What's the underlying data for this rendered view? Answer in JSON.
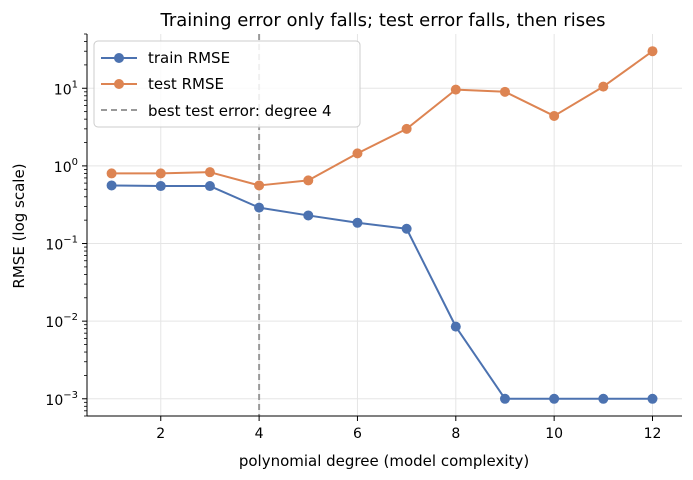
{
  "chart_data": {
    "type": "line",
    "title": "Training error only falls; test error falls, then rises",
    "xlabel": "polynomial degree (model complexity)",
    "ylabel": "RMSE (log scale)",
    "x_scale": "linear",
    "y_scale": "log",
    "xlim": [
      0.5,
      12.6
    ],
    "ylim": [
      0.0006,
      50
    ],
    "x_ticks": [
      2,
      4,
      6,
      8,
      10,
      12
    ],
    "x_tick_labels": [
      "2",
      "4",
      "6",
      "8",
      "10",
      "12"
    ],
    "y_ticks": [
      0.001,
      0.01,
      0.1,
      1,
      10
    ],
    "y_tick_labels": [
      {
        "base": "10",
        "exp": "−3"
      },
      {
        "base": "10",
        "exp": "−2"
      },
      {
        "base": "10",
        "exp": "−1"
      },
      {
        "base": "10",
        "exp": "0"
      },
      {
        "base": "10",
        "exp": "1"
      }
    ],
    "grid": true,
    "legend_position": "top-left",
    "x": [
      1,
      2,
      3,
      4,
      5,
      6,
      7,
      8,
      9,
      10,
      11,
      12
    ],
    "series": [
      {
        "name": "train RMSE",
        "color": "#4c72b0",
        "marker": "circle",
        "values": [
          0.56,
          0.55,
          0.55,
          0.29,
          0.23,
          0.185,
          0.155,
          0.0085,
          0.001,
          0.001,
          0.001,
          0.001
        ]
      },
      {
        "name": "test RMSE",
        "color": "#dd8452",
        "marker": "circle",
        "values": [
          0.8,
          0.8,
          0.83,
          0.56,
          0.65,
          1.45,
          3.0,
          9.6,
          9.0,
          4.4,
          10.5,
          30.0
        ]
      }
    ],
    "vline": {
      "x": 4,
      "label": "best test error: degree 4",
      "color": "#999999",
      "style": "dashed"
    }
  }
}
